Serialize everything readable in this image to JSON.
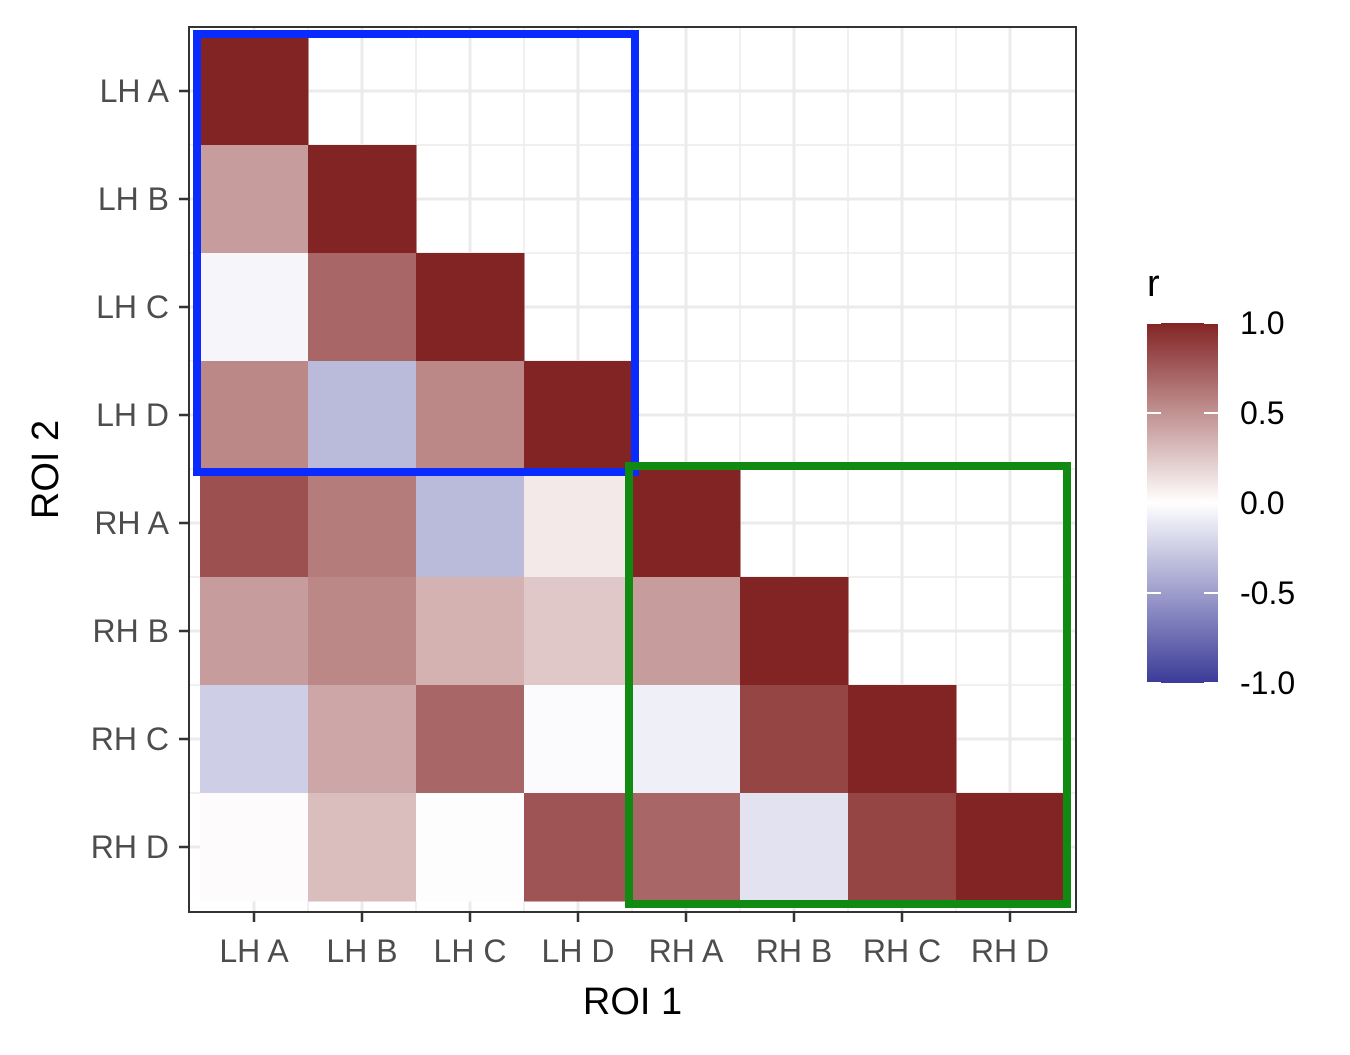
{
  "chart_data": {
    "type": "heatmap",
    "xlabel": "ROI 1",
    "ylabel": "ROI 2",
    "x_categories": [
      "LH A",
      "LH B",
      "LH C",
      "LH D",
      "RH A",
      "RH B",
      "RH C",
      "RH D"
    ],
    "y_categories": [
      "LH A",
      "LH B",
      "LH C",
      "LH D",
      "RH A",
      "RH B",
      "RH C",
      "RH D"
    ],
    "values": [
      [
        1.0,
        null,
        null,
        null,
        null,
        null,
        null,
        null
      ],
      [
        0.45,
        1.0,
        null,
        null,
        null,
        null,
        null,
        null
      ],
      [
        -0.05,
        0.7,
        1.0,
        null,
        null,
        null,
        null,
        null
      ],
      [
        0.55,
        -0.35,
        0.55,
        1.0,
        null,
        null,
        null,
        null
      ],
      [
        0.8,
        0.6,
        -0.35,
        0.1,
        1.0,
        null,
        null,
        null
      ],
      [
        0.45,
        0.55,
        0.35,
        0.25,
        0.45,
        1.0,
        null,
        null
      ],
      [
        -0.25,
        0.4,
        0.7,
        -0.02,
        -0.08,
        0.85,
        1.0,
        null
      ],
      [
        0.02,
        0.3,
        -0.01,
        0.78,
        0.7,
        -0.15,
        0.85,
        1.0
      ]
    ],
    "legend": {
      "title": "r",
      "ticks": [
        "1.0",
        "0.5",
        "0.0",
        "-0.5",
        "-1.0"
      ],
      "range": [
        -1.0,
        1.0
      ],
      "position": "right"
    },
    "colors": {
      "low": "#3b3b99",
      "mid": "#ffffff",
      "high": "#832424",
      "panel_grid": "#ebebeb"
    },
    "highlight_boxes": [
      {
        "name": "left-hemisphere-box",
        "color": "#0a2bff",
        "x_range": [
          "LH A",
          "LH D"
        ],
        "y_range": [
          "LH A",
          "LH D"
        ]
      },
      {
        "name": "right-hemisphere-box",
        "color": "#108a10",
        "x_range": [
          "RH A",
          "RH D"
        ],
        "y_range": [
          "RH A",
          "RH D"
        ]
      }
    ],
    "grid": true
  }
}
